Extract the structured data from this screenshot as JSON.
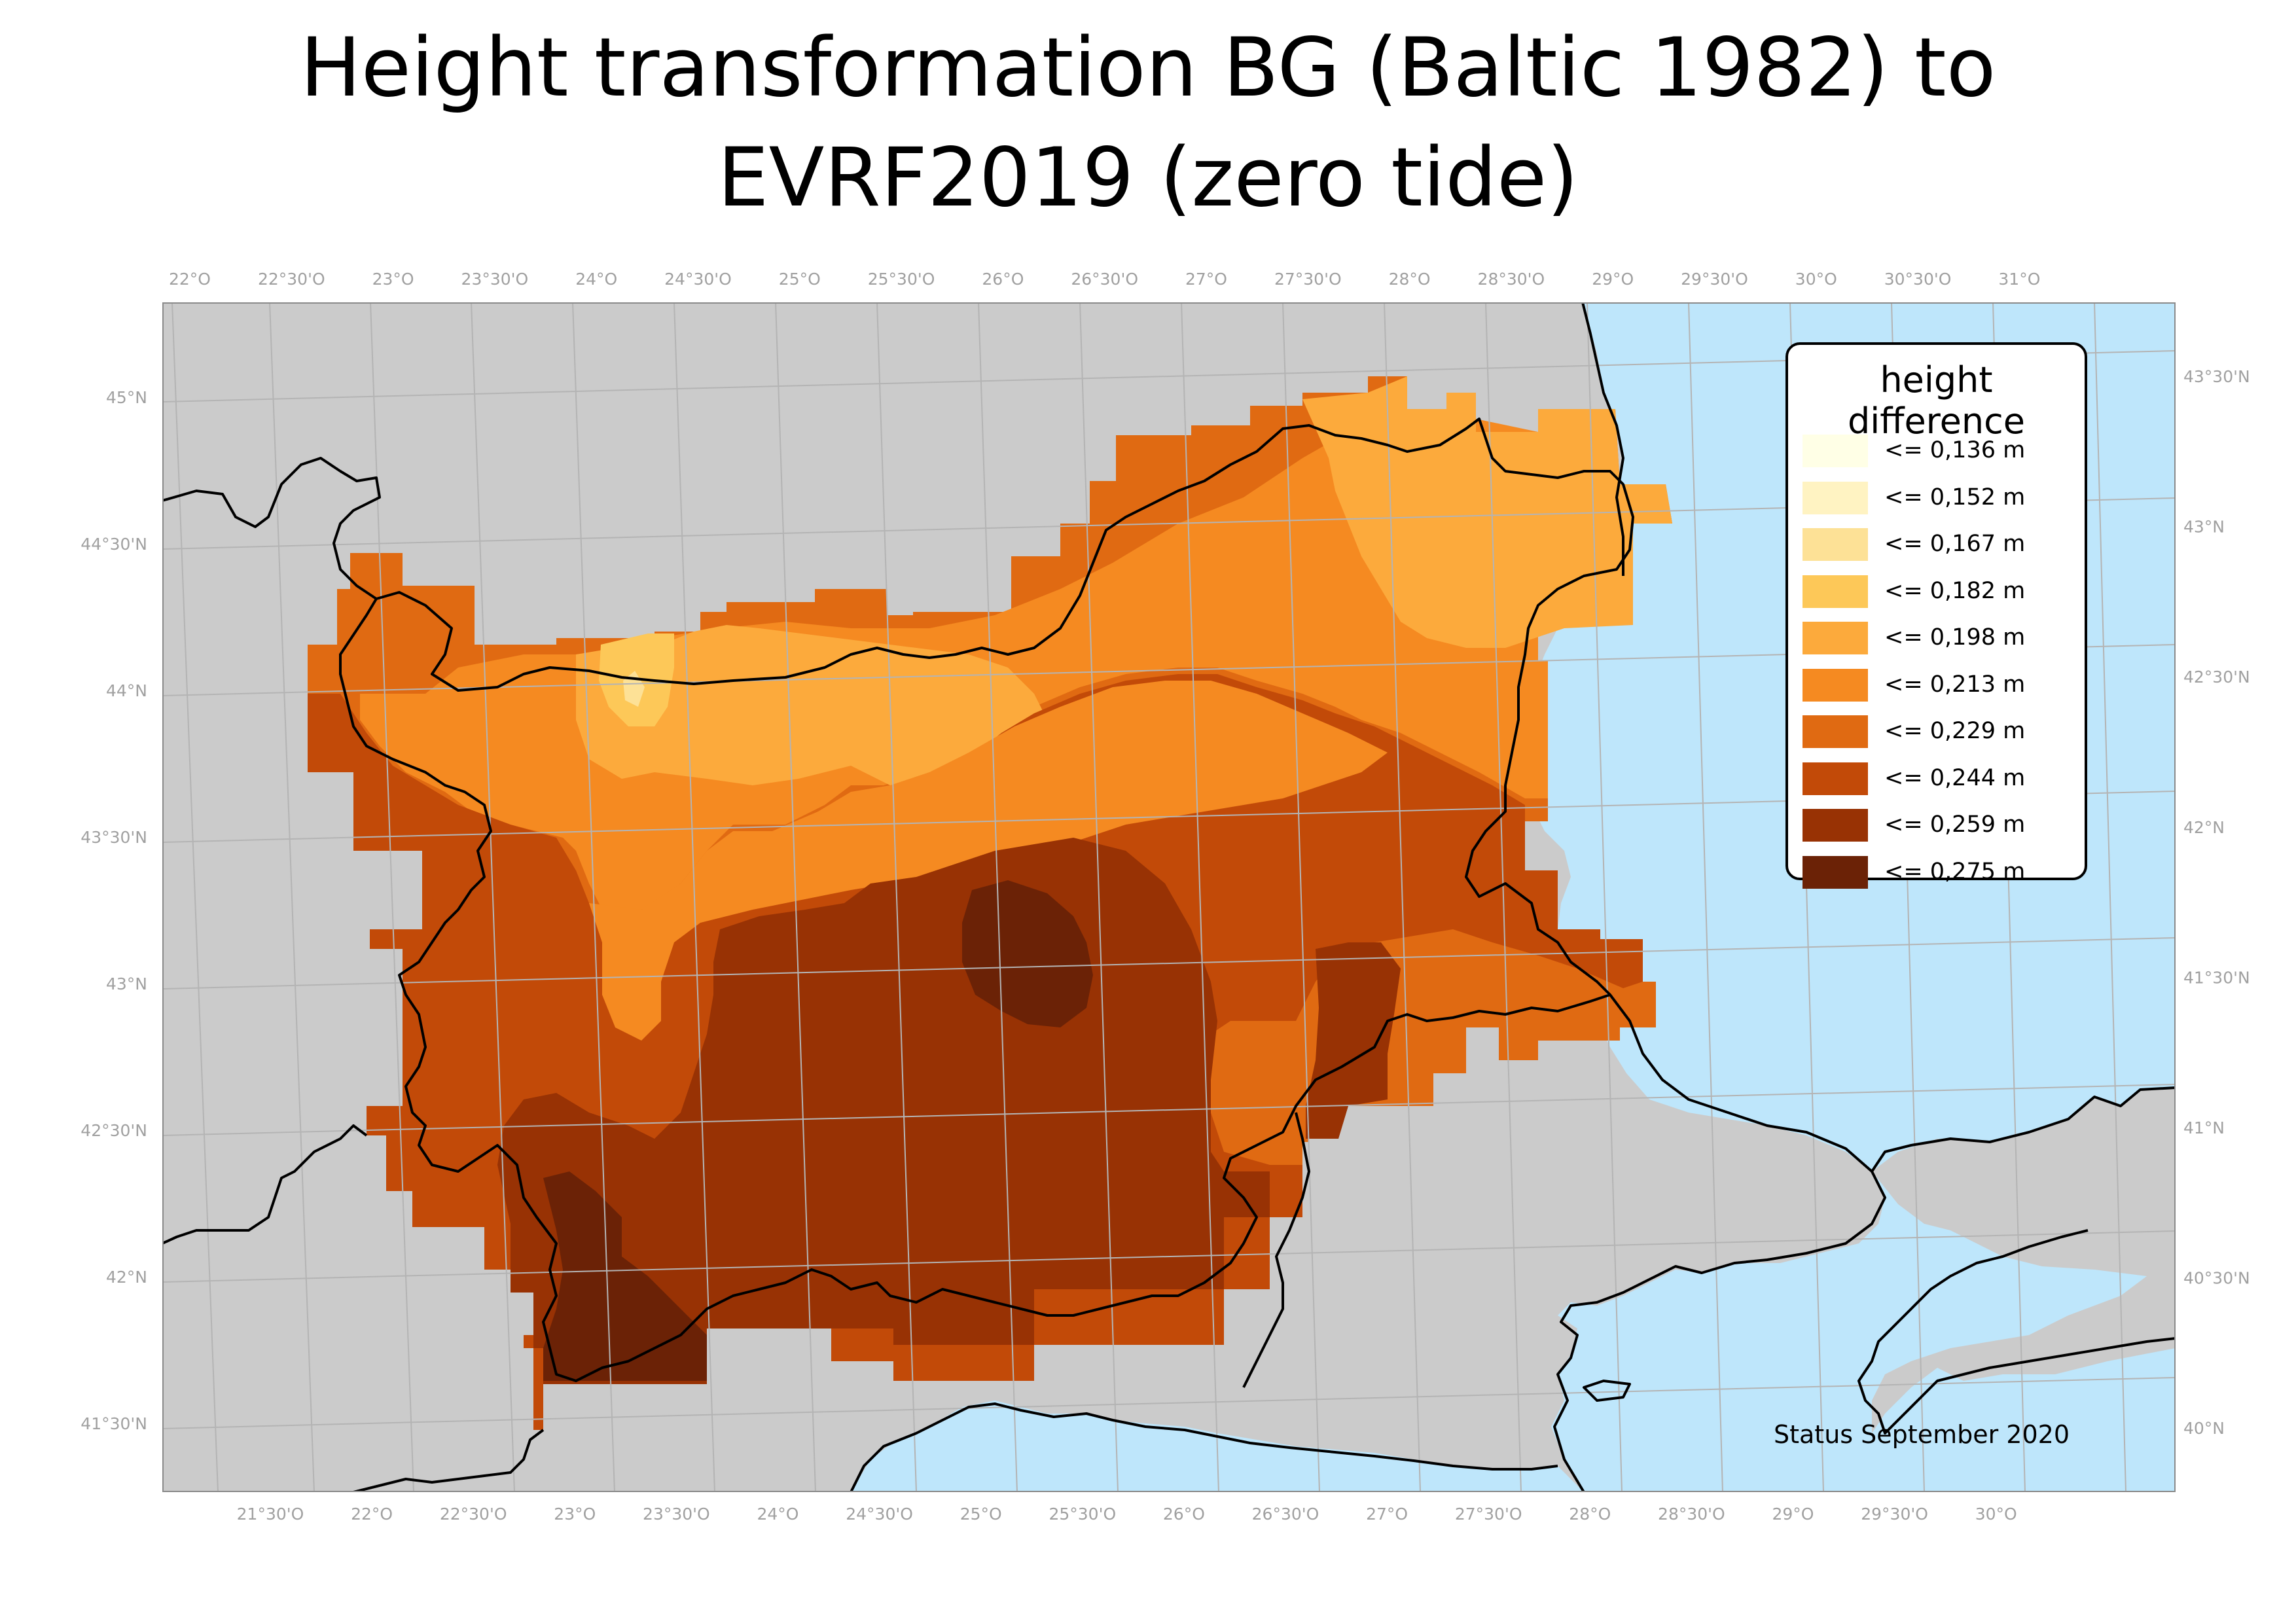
{
  "title": {
    "line1": "Height transformation BG (Baltic 1982) to",
    "line2": "EVRF2019 (zero tide)"
  },
  "legend": {
    "title": "height difference",
    "items": [
      {
        "label": "<= 0,136 m",
        "color": "#ffffe6"
      },
      {
        "label": "<= 0,152 m",
        "color": "#fff3c2"
      },
      {
        "label": "<= 0,167 m",
        "color": "#fde196"
      },
      {
        "label": "<= 0,182 m",
        "color": "#fdc858"
      },
      {
        "label": "<= 0,198 m",
        "color": "#fcaa3c"
      },
      {
        "label": "<= 0,213 m",
        "color": "#f58a21"
      },
      {
        "label": "<= 0,229 m",
        "color": "#e06a12"
      },
      {
        "label": "<= 0,244 m",
        "color": "#c24a08"
      },
      {
        "label": "<= 0,259 m",
        "color": "#983204"
      },
      {
        "label": "<= 0,275 m",
        "color": "#6b2206"
      }
    ]
  },
  "status_text": "Status September 2020",
  "colors": {
    "land": "#cbcbcb",
    "sea": "#bee6fb",
    "frame": "#8a8a8a",
    "border": "#000000",
    "grid": "#b4b4b4",
    "tick_text": "#a0a0a0"
  },
  "graticule": {
    "top_lon_labels": [
      "22°O",
      "22°30'O",
      "23°O",
      "23°30'O",
      "24°O",
      "24°30'O",
      "25°O",
      "25°30'O",
      "26°O",
      "26°30'O",
      "27°O",
      "27°30'O",
      "28°O",
      "28°30'O",
      "29°O",
      "29°30'O",
      "30°O",
      "30°30'O",
      "31°O"
    ],
    "bottom_lon_labels": [
      "21°30'O",
      "22°O",
      "22°30'O",
      "23°O",
      "23°30'O",
      "24°O",
      "24°30'O",
      "25°O",
      "25°30'O",
      "26°O",
      "26°30'O",
      "27°O",
      "27°30'O",
      "28°O",
      "28°30'O",
      "29°O",
      "29°30'O",
      "30°O"
    ],
    "left_lat_labels": [
      "45°N",
      "44°30'N",
      "44°N",
      "43°30'N",
      "43°N",
      "42°30'N",
      "42°N",
      "41°30'N"
    ],
    "right_lat_labels": [
      "43°30'N",
      "43°N",
      "42°30'N",
      "42°N",
      "41°30'N",
      "41°N",
      "40°30'N",
      "40°N"
    ]
  }
}
